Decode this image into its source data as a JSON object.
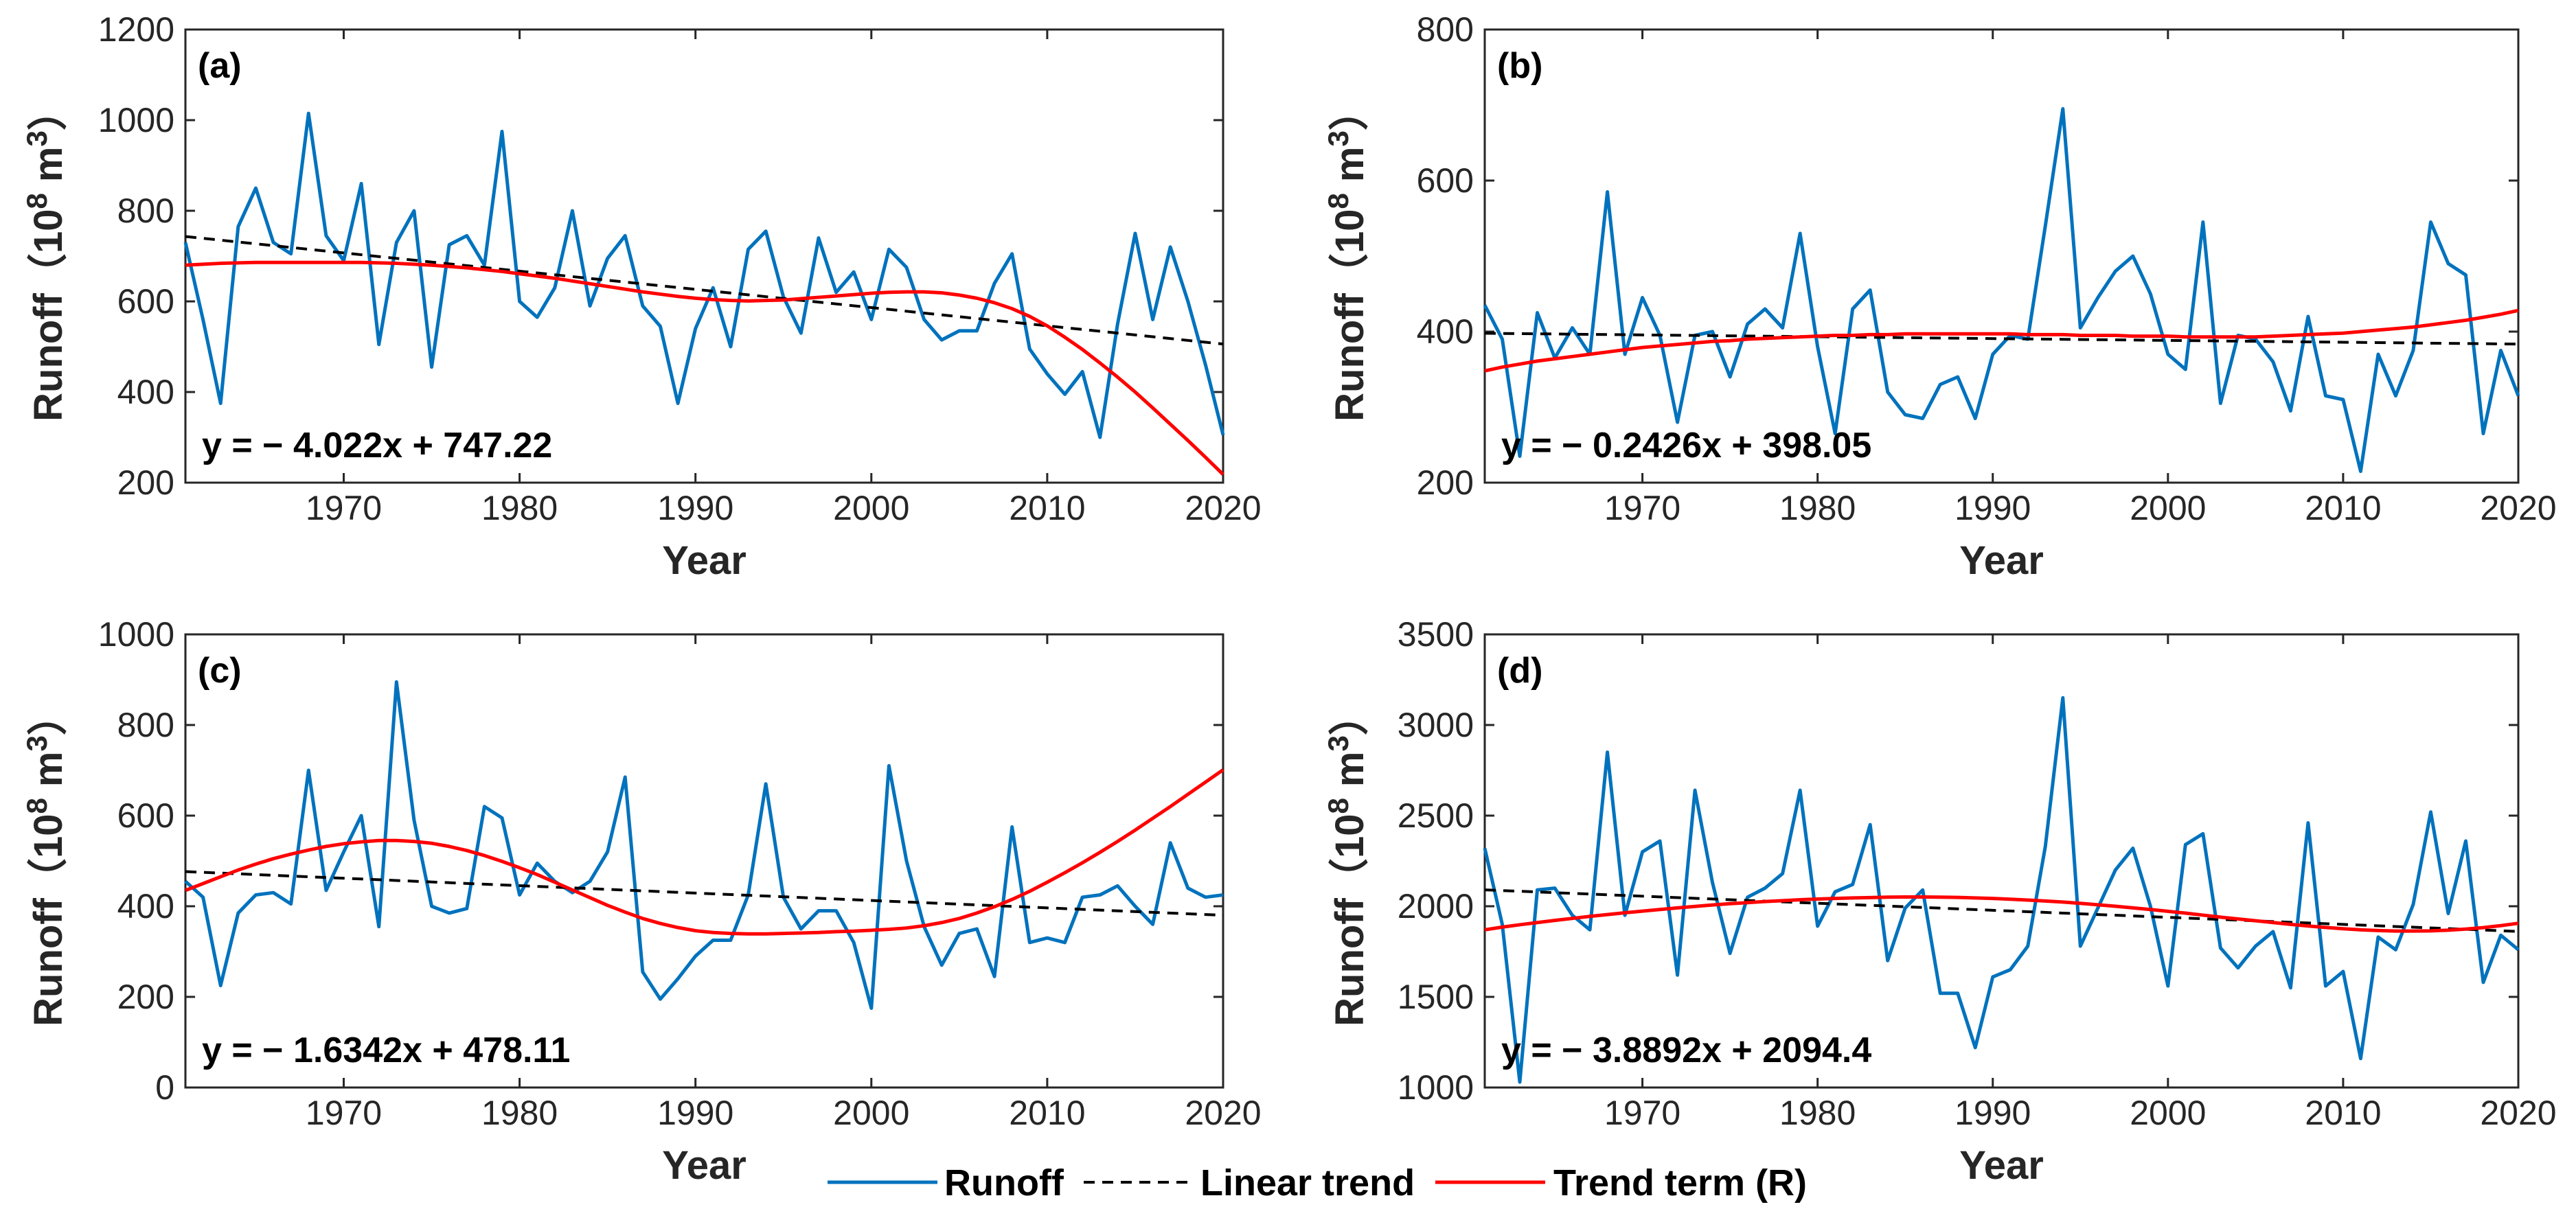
{
  "colors": {
    "runoff": "#0072BD",
    "linear": "#000000",
    "trend": "#FF0000",
    "axis": "#262626"
  },
  "legend": {
    "runoff": "Runoff",
    "linear": "Linear trend",
    "trend": "Trend term (R)"
  },
  "common": {
    "xlabel": "Year",
    "ylabel_main": "Runoff",
    "ylabel_unit_open": "（10",
    "ylabel_exp1": "8",
    "ylabel_unit_mid": " m",
    "ylabel_exp2": "3",
    "ylabel_unit_close": "）",
    "xticks": [
      1970,
      1980,
      1990,
      2000,
      2010,
      2020
    ],
    "xlim": [
      1961,
      2020
    ]
  },
  "chart_data": [
    {
      "type": "line",
      "label": "(a)",
      "equation": "y = − 4.022x + 747.22",
      "xlabel": "Year",
      "ylabel": "Runoff（10^8 m^3）",
      "ylim": [
        200,
        1200
      ],
      "yticks": [
        200,
        400,
        600,
        800,
        1000,
        1200
      ],
      "x": [
        1961,
        1962,
        1963,
        1964,
        1965,
        1966,
        1967,
        1968,
        1969,
        1970,
        1971,
        1972,
        1973,
        1974,
        1975,
        1976,
        1977,
        1978,
        1979,
        1980,
        1981,
        1982,
        1983,
        1984,
        1985,
        1986,
        1987,
        1988,
        1989,
        1990,
        1991,
        1992,
        1993,
        1994,
        1995,
        1996,
        1997,
        1998,
        1999,
        2000,
        2001,
        2002,
        2003,
        2004,
        2005,
        2006,
        2007,
        2008,
        2009,
        2010,
        2011,
        2012,
        2013,
        2014,
        2015,
        2016,
        2017,
        2018,
        2019,
        2020
      ],
      "series": [
        {
          "name": "Runoff",
          "values": [
            730,
            560,
            375,
            765,
            850,
            730,
            705,
            1015,
            745,
            690,
            860,
            505,
            730,
            800,
            455,
            725,
            745,
            680,
            975,
            600,
            565,
            630,
            800,
            590,
            695,
            745,
            590,
            545,
            375,
            540,
            630,
            500,
            715,
            755,
            610,
            530,
            740,
            620,
            665,
            560,
            715,
            675,
            560,
            515,
            535,
            535,
            640,
            705,
            495,
            440,
            395,
            445,
            300,
            550,
            750,
            560,
            720,
            600,
            460,
            305
          ]
        },
        {
          "name": "Linear trend",
          "slope": -4.022,
          "intercept": 747.22
        },
        {
          "name": "Trend term (R)",
          "values": [
            680,
            682,
            684,
            685,
            686,
            686,
            686,
            686,
            686,
            686,
            686,
            685,
            684,
            682,
            680,
            677,
            674,
            670,
            666,
            661,
            656,
            651,
            645,
            639,
            633,
            627,
            621,
            616,
            611,
            607,
            604,
            602,
            601,
            602,
            603,
            606,
            609,
            612,
            615,
            618,
            620,
            621,
            621,
            619,
            614,
            607,
            597,
            584,
            567,
            546,
            521,
            494,
            464,
            433,
            400,
            365,
            329,
            293,
            256,
            218
          ]
        }
      ]
    },
    {
      "type": "line",
      "label": "(b)",
      "equation": "y = − 0.2426x + 398.05",
      "xlabel": "Year",
      "ylabel": "Runoff（10^8 m^3）",
      "ylim": [
        200,
        800
      ],
      "yticks": [
        200,
        400,
        600,
        800
      ],
      "x": [
        1961,
        1962,
        1963,
        1964,
        1965,
        1966,
        1967,
        1968,
        1969,
        1970,
        1971,
        1972,
        1973,
        1974,
        1975,
        1976,
        1977,
        1978,
        1979,
        1980,
        1981,
        1982,
        1983,
        1984,
        1985,
        1986,
        1987,
        1988,
        1989,
        1990,
        1991,
        1992,
        1993,
        1994,
        1995,
        1996,
        1997,
        1998,
        1999,
        2000,
        2001,
        2002,
        2003,
        2004,
        2005,
        2006,
        2007,
        2008,
        2009,
        2010,
        2011,
        2012,
        2013,
        2014,
        2015,
        2016,
        2017,
        2018,
        2019,
        2020
      ],
      "series": [
        {
          "name": "Runoff",
          "values": [
            435,
            390,
            235,
            425,
            365,
            405,
            370,
            585,
            370,
            445,
            395,
            280,
            395,
            400,
            340,
            410,
            430,
            405,
            530,
            380,
            265,
            430,
            455,
            320,
            290,
            285,
            330,
            340,
            285,
            370,
            395,
            390,
            540,
            695,
            405,
            445,
            480,
            500,
            450,
            370,
            350,
            545,
            305,
            395,
            390,
            360,
            295,
            420,
            315,
            310,
            215,
            370,
            315,
            375,
            545,
            490,
            475,
            265,
            375,
            315
          ]
        },
        {
          "name": "Linear trend",
          "slope": -0.2426,
          "intercept": 398.05
        },
        {
          "name": "Trend term (R)",
          "values": [
            348,
            353,
            357,
            361,
            364,
            367,
            370,
            373,
            376,
            379,
            381,
            383,
            385,
            387,
            388,
            390,
            391,
            392,
            393,
            394,
            395,
            395,
            396,
            396,
            397,
            397,
            397,
            397,
            397,
            397,
            397,
            396,
            396,
            396,
            395,
            395,
            395,
            394,
            394,
            394,
            393,
            393,
            393,
            393,
            393,
            394,
            395,
            396,
            397,
            398,
            400,
            402,
            404,
            406,
            409,
            412,
            415,
            419,
            423,
            428
          ]
        }
      ]
    },
    {
      "type": "line",
      "label": "(c)",
      "equation": "y = − 1.6342x + 478.11",
      "xlabel": "Year",
      "ylabel": "Runoff（10^8 m^3）",
      "ylim": [
        0,
        1000
      ],
      "yticks": [
        0,
        200,
        400,
        600,
        800,
        1000
      ],
      "x": [
        1961,
        1962,
        1963,
        1964,
        1965,
        1966,
        1967,
        1968,
        1969,
        1970,
        1971,
        1972,
        1973,
        1974,
        1975,
        1976,
        1977,
        1978,
        1979,
        1980,
        1981,
        1982,
        1983,
        1984,
        1985,
        1986,
        1987,
        1988,
        1989,
        1990,
        1991,
        1992,
        1993,
        1994,
        1995,
        1996,
        1997,
        1998,
        1999,
        2000,
        2001,
        2002,
        2003,
        2004,
        2005,
        2006,
        2007,
        2008,
        2009,
        2010,
        2011,
        2012,
        2013,
        2014,
        2015,
        2016,
        2017,
        2018,
        2019,
        2020
      ],
      "series": [
        {
          "name": "Runoff",
          "values": [
            455,
            420,
            225,
            385,
            425,
            430,
            405,
            700,
            435,
            520,
            600,
            355,
            895,
            590,
            400,
            385,
            395,
            620,
            595,
            425,
            495,
            455,
            430,
            455,
            520,
            685,
            255,
            195,
            240,
            290,
            325,
            325,
            425,
            670,
            420,
            350,
            390,
            390,
            320,
            175,
            710,
            500,
            355,
            270,
            340,
            350,
            245,
            575,
            320,
            330,
            320,
            420,
            425,
            445,
            400,
            360,
            540,
            440,
            420,
            425
          ]
        },
        {
          "name": "Linear trend",
          "slope": -1.6342,
          "intercept": 478.11
        },
        {
          "name": "Trend term (R)",
          "values": [
            435,
            450,
            465,
            480,
            493,
            505,
            515,
            524,
            532,
            538,
            542,
            545,
            545,
            543,
            539,
            532,
            523,
            512,
            499,
            485,
            470,
            453,
            436,
            419,
            402,
            387,
            373,
            362,
            353,
            346,
            342,
            340,
            339,
            339,
            340,
            341,
            342,
            344,
            345,
            347,
            349,
            352,
            357,
            364,
            373,
            385,
            399,
            415,
            433,
            453,
            474,
            496,
            519,
            543,
            568,
            594,
            620,
            647,
            674,
            701
          ]
        }
      ]
    },
    {
      "type": "line",
      "label": "(d)",
      "equation": "y = − 3.8892x + 2094.4",
      "xlabel": "Year",
      "ylabel": "Runoff（10^8 m^3）",
      "ylim": [
        1000,
        3500
      ],
      "yticks": [
        1000,
        1500,
        2000,
        2500,
        3000,
        3500
      ],
      "x": [
        1961,
        1962,
        1963,
        1964,
        1965,
        1966,
        1967,
        1968,
        1969,
        1970,
        1971,
        1972,
        1973,
        1974,
        1975,
        1976,
        1977,
        1978,
        1979,
        1980,
        1981,
        1982,
        1983,
        1984,
        1985,
        1986,
        1987,
        1988,
        1989,
        1990,
        1991,
        1992,
        1993,
        1994,
        1995,
        1996,
        1997,
        1998,
        1999,
        2000,
        2001,
        2002,
        2003,
        2004,
        2005,
        2006,
        2007,
        2008,
        2009,
        2010,
        2011,
        2012,
        2013,
        2014,
        2015,
        2016,
        2017,
        2018,
        2019,
        2020
      ],
      "series": [
        {
          "name": "Runoff",
          "values": [
            2320,
            1900,
            1030,
            2090,
            2100,
            1950,
            1870,
            2850,
            1950,
            2300,
            2360,
            1620,
            2640,
            2130,
            1740,
            2050,
            2100,
            2180,
            2640,
            1890,
            2080,
            2120,
            2450,
            1700,
            1990,
            2090,
            1520,
            1520,
            1220,
            1610,
            1650,
            1780,
            2330,
            3150,
            1780,
            1990,
            2200,
            2320,
            2000,
            1560,
            2340,
            2400,
            1770,
            1660,
            1780,
            1860,
            1550,
            2460,
            1560,
            1640,
            1160,
            1830,
            1760,
            2010,
            2520,
            1960,
            2360,
            1580,
            1840,
            1760
          ]
        },
        {
          "name": "Linear trend",
          "slope": -3.8892,
          "intercept": 2094.4
        },
        {
          "name": "Trend term (R)",
          "values": [
            1870,
            1885,
            1898,
            1910,
            1922,
            1933,
            1944,
            1954,
            1964,
            1973,
            1982,
            1991,
            1999,
            2007,
            2014,
            2020,
            2026,
            2031,
            2036,
            2040,
            2043,
            2046,
            2048,
            2050,
            2051,
            2051,
            2050,
            2049,
            2046,
            2043,
            2039,
            2034,
            2029,
            2023,
            2016,
            2008,
            2000,
            1991,
            1982,
            1972,
            1962,
            1951,
            1940,
            1930,
            1920,
            1910,
            1900,
            1891,
            1883,
            1876,
            1870,
            1866,
            1863,
            1863,
            1864,
            1868,
            1874,
            1882,
            1893,
            1906
          ]
        }
      ]
    }
  ]
}
